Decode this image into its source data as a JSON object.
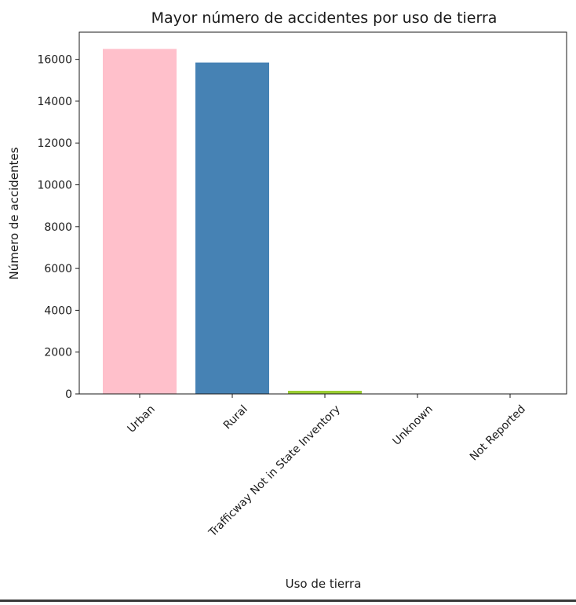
{
  "chart_data": {
    "type": "bar",
    "title": "Mayor número de accidentes por uso de tierra",
    "xlabel": "Uso de tierra",
    "ylabel": "Número de accidentes",
    "categories": [
      "Urban",
      "Rural",
      "Trafficway Not in State Inventory",
      "Unknown",
      "Not Reported"
    ],
    "values": [
      16500,
      15850,
      150,
      3,
      2
    ],
    "colors": [
      "#ffc0cb",
      "#4682b4",
      "#9acd32",
      "#1f77b4",
      "#1f77b4"
    ],
    "ylim": [
      0,
      17300
    ],
    "yticks": [
      0,
      2000,
      4000,
      6000,
      8000,
      10000,
      12000,
      14000,
      16000
    ],
    "x_tick_rotation": 45,
    "grid": false,
    "legend": "none"
  }
}
